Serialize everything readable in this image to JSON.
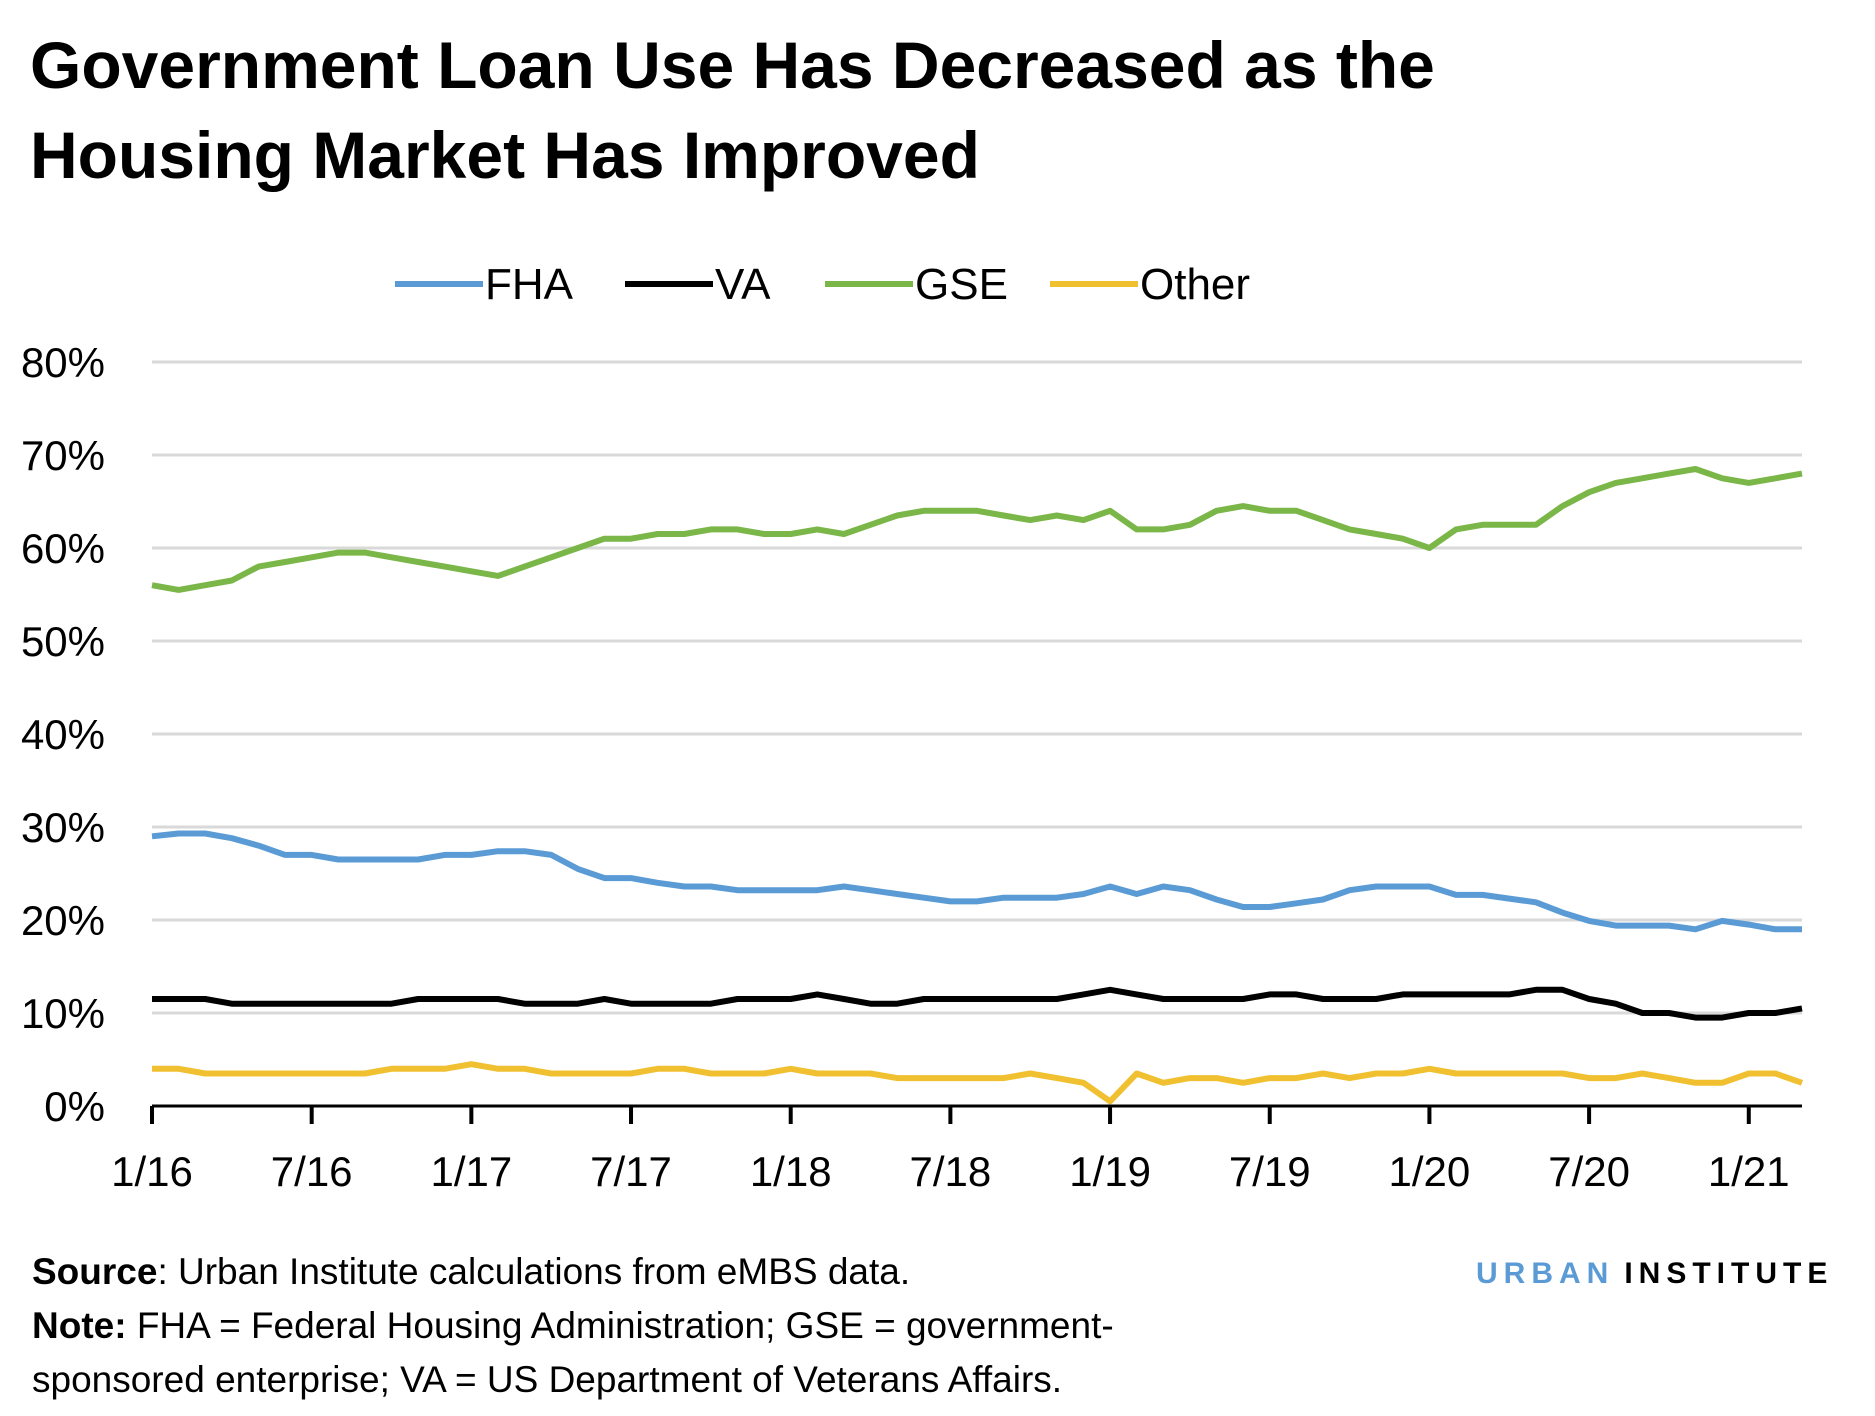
{
  "chart_data": {
    "type": "line",
    "title_lines": [
      "Government Loan Use Has Decreased as the",
      "Housing Market Has Improved"
    ],
    "xlabel": "",
    "ylabel": "",
    "x_tick_labels": [
      "1/16",
      "7/16",
      "1/17",
      "7/17",
      "1/18",
      "7/18",
      "1/19",
      "7/19",
      "1/20",
      "7/20",
      "1/21"
    ],
    "x_start": "2016-01",
    "x_end": "2021-03",
    "x_frequency": "monthly",
    "y_tick_labels": [
      "0%",
      "10%",
      "20%",
      "30%",
      "40%",
      "50%",
      "60%",
      "70%",
      "80%"
    ],
    "ylim": [
      0,
      80
    ],
    "y_unit": "%",
    "grid": true,
    "legend_position": "top",
    "series": [
      {
        "name": "FHA",
        "color": "#5b9bd5",
        "values": [
          29,
          29.3,
          29.3,
          28.8,
          28,
          27,
          27,
          26.5,
          26.5,
          26.5,
          26.5,
          27,
          27,
          27.4,
          27.4,
          27,
          25.5,
          24.5,
          24.5,
          24,
          23.6,
          23.6,
          23.2,
          23.2,
          23.2,
          23.2,
          23.6,
          23.2,
          22.8,
          22.4,
          22,
          22,
          22.4,
          22.4,
          22.4,
          22.8,
          23.6,
          22.8,
          23.6,
          23.2,
          22.2,
          21.4,
          21.4,
          21.8,
          22.2,
          23.2,
          23.6,
          23.6,
          23.6,
          22.7,
          22.7,
          22.3,
          21.9,
          20.8,
          19.9,
          19.4,
          19.4,
          19.4,
          19,
          19.9,
          19.5,
          19,
          19
        ]
      },
      {
        "name": "VA",
        "color": "#000000",
        "values": [
          11.5,
          11.5,
          11.5,
          11,
          11,
          11,
          11,
          11,
          11,
          11,
          11.5,
          11.5,
          11.5,
          11.5,
          11,
          11,
          11,
          11.5,
          11,
          11,
          11,
          11,
          11.5,
          11.5,
          11.5,
          12,
          11.5,
          11,
          11,
          11.5,
          11.5,
          11.5,
          11.5,
          11.5,
          11.5,
          12,
          12.5,
          12,
          11.5,
          11.5,
          11.5,
          11.5,
          12,
          12,
          11.5,
          11.5,
          11.5,
          12,
          12,
          12,
          12,
          12,
          12.5,
          12.5,
          11.5,
          11,
          10,
          10,
          9.5,
          9.5,
          10,
          10,
          10.5
        ]
      },
      {
        "name": "GSE",
        "color": "#7ab648",
        "values": [
          56,
          55.5,
          56,
          56.5,
          58,
          58.5,
          59,
          59.5,
          59.5,
          59,
          58.5,
          58,
          57.5,
          57,
          58,
          59,
          60,
          61,
          61,
          61.5,
          61.5,
          62,
          62,
          61.5,
          61.5,
          62,
          61.5,
          62.5,
          63.5,
          64,
          64,
          64,
          63.5,
          63,
          63.5,
          63,
          64,
          62,
          62,
          62.5,
          64,
          64.5,
          64,
          64,
          63,
          62,
          61.5,
          61,
          60,
          62,
          62.5,
          62.5,
          62.5,
          64.5,
          66,
          67,
          67.5,
          68,
          68.5,
          67.5,
          67,
          67.5,
          68
        ]
      },
      {
        "name": "Other",
        "color": "#f0c030",
        "values": [
          4,
          4,
          3.5,
          3.5,
          3.5,
          3.5,
          3.5,
          3.5,
          3.5,
          4,
          4,
          4,
          4.5,
          4,
          4,
          3.5,
          3.5,
          3.5,
          3.5,
          4,
          4,
          3.5,
          3.5,
          3.5,
          4,
          3.5,
          3.5,
          3.5,
          3,
          3,
          3,
          3,
          3,
          3.5,
          3,
          2.5,
          0.5,
          3.5,
          2.5,
          3,
          3,
          2.5,
          3,
          3,
          3.5,
          3,
          3.5,
          3.5,
          4,
          3.5,
          3.5,
          3.5,
          3.5,
          3.5,
          3,
          3,
          3.5,
          3,
          2.5,
          2.5,
          3.5,
          3.5,
          2.5
        ]
      }
    ]
  },
  "footer": {
    "source_label": "Source",
    "source_text": ": Urban Institute calculations from eMBS data.",
    "note_label": "Note:",
    "note_text_1": " FHA = Federal Housing Administration; GSE = government-",
    "note_text_2": "sponsored enterprise; VA = US Department of Veterans Affairs."
  },
  "logo": {
    "word1": "URBAN",
    "word2": "INSTITUTE",
    "color1": "#5b9bd5",
    "color2": "#000000"
  }
}
